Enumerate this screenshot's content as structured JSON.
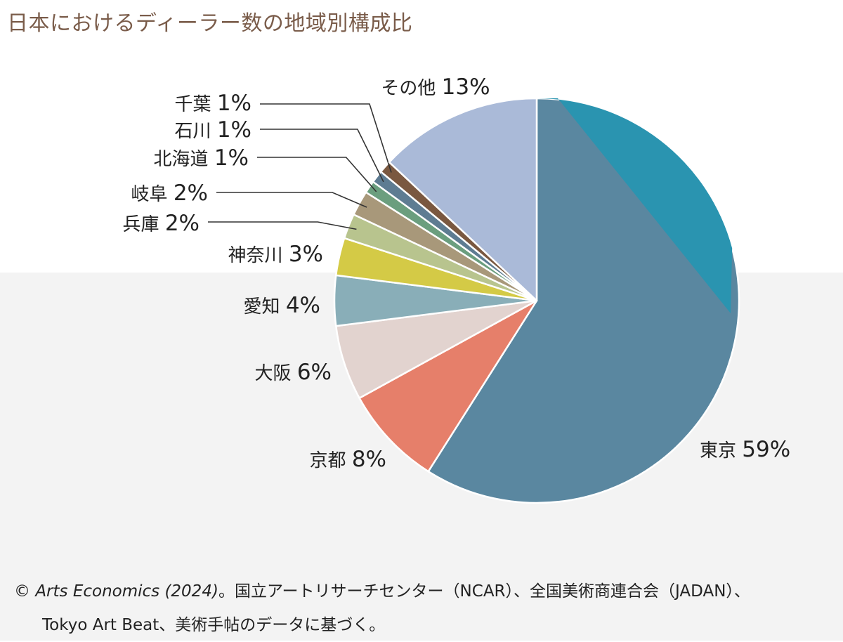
{
  "chart_data": {
    "type": "pie",
    "title": "日本におけるディーラー数の地域別構成比",
    "unit": "%",
    "slices": [
      {
        "label": "東京",
        "value": 59,
        "color": "#5a87a0"
      },
      {
        "label": "京都",
        "value": 8,
        "color": "#e67f6a"
      },
      {
        "label": "大阪",
        "value": 6,
        "color": "#e2d3cf"
      },
      {
        "label": "愛知",
        "value": 4,
        "color": "#89aeb8"
      },
      {
        "label": "神奈川",
        "value": 3,
        "color": "#d4ca46"
      },
      {
        "label": "兵庫",
        "value": 2,
        "color": "#b8c48e"
      },
      {
        "label": "岐阜",
        "value": 2,
        "color": "#a8987a"
      },
      {
        "label": "北海道",
        "value": 1,
        "color": "#6b9e7e"
      },
      {
        "label": "石川",
        "value": 1,
        "color": "#5e7c92"
      },
      {
        "label": "千葉",
        "value": 1,
        "color": "#7a5840"
      },
      {
        "label": "その他",
        "value": 13,
        "color": "#aabad8"
      }
    ],
    "accent_color": "#2a94b0"
  },
  "source": {
    "copyright": "©",
    "cite": "Arts Economics (2024)",
    "rest_line1": "。国立アートリサーチセンター（NCAR）、全国美術商連合会（JADAN）、",
    "line2": "Tokyo Art Beat、美術手帖のデータに基づく。"
  }
}
